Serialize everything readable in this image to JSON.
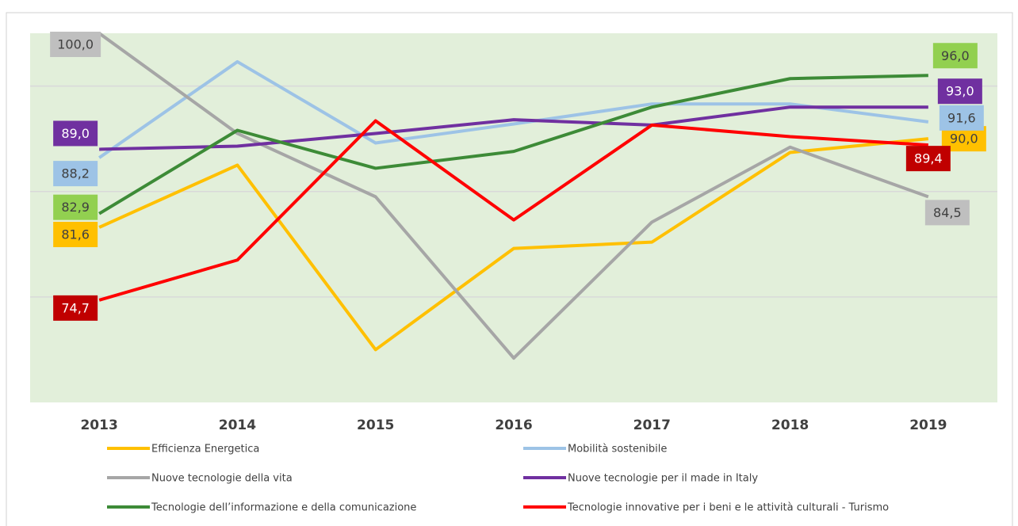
{
  "chart_data": {
    "type": "line",
    "categories": [
      "2013",
      "2014",
      "2015",
      "2016",
      "2017",
      "2018",
      "2019"
    ],
    "ylim": [
      65,
      100
    ],
    "yticks": [
      75,
      85,
      95
    ],
    "grid": true,
    "legend": "bottom",
    "series": [
      {
        "name": "Efficienza Energetica",
        "color": "#ffc000",
        "label_color": "#ffc000",
        "values": [
          81.6,
          87.5,
          70.0,
          79.6,
          80.2,
          88.7,
          90.0
        ],
        "value_labels": [
          "81,6",
          null,
          null,
          null,
          null,
          null,
          "90,0"
        ]
      },
      {
        "name": "Mobilità sostenibile",
        "color": "#9dc3e6",
        "label_color": "#9dc3e6",
        "values": [
          88.2,
          97.3,
          89.6,
          91.4,
          93.3,
          93.3,
          91.6
        ],
        "value_labels": [
          "88,2",
          null,
          null,
          null,
          null,
          null,
          "91,6"
        ]
      },
      {
        "name": "Nuove tecnologie della vita",
        "color": "#a6a6a6",
        "label_color": "#bfbfbf",
        "values": [
          100.0,
          90.5,
          84.5,
          69.2,
          82.1,
          89.2,
          84.5
        ],
        "value_labels": [
          "100,0",
          null,
          null,
          null,
          null,
          null,
          "84,5"
        ]
      },
      {
        "name": "Nuove tecnologie per il made in Italy",
        "color": "#7030a0",
        "label_color": "#7030a0",
        "values": [
          89.0,
          89.3,
          90.5,
          91.8,
          91.3,
          93.0,
          93.0
        ],
        "value_labels": [
          "89,0",
          null,
          null,
          null,
          null,
          null,
          "93,0"
        ]
      },
      {
        "name": "Tecnologie dell’informazione e della comunicazione",
        "color": "#3d8b37",
        "label_color": "#92d050",
        "values": [
          82.9,
          90.8,
          87.2,
          88.8,
          93.0,
          95.7,
          96.0
        ],
        "value_labels": [
          "82,9",
          null,
          null,
          null,
          null,
          null,
          "96,0"
        ]
      },
      {
        "name": "Tecnologie innovative per i beni e le attività culturali - Turismo",
        "color": "#ff0000",
        "label_color": "#c00000",
        "values": [
          74.7,
          78.5,
          91.7,
          82.3,
          91.3,
          90.2,
          89.4
        ],
        "value_labels": [
          "74,7",
          null,
          null,
          null,
          null,
          null,
          "89,4"
        ]
      }
    ]
  }
}
